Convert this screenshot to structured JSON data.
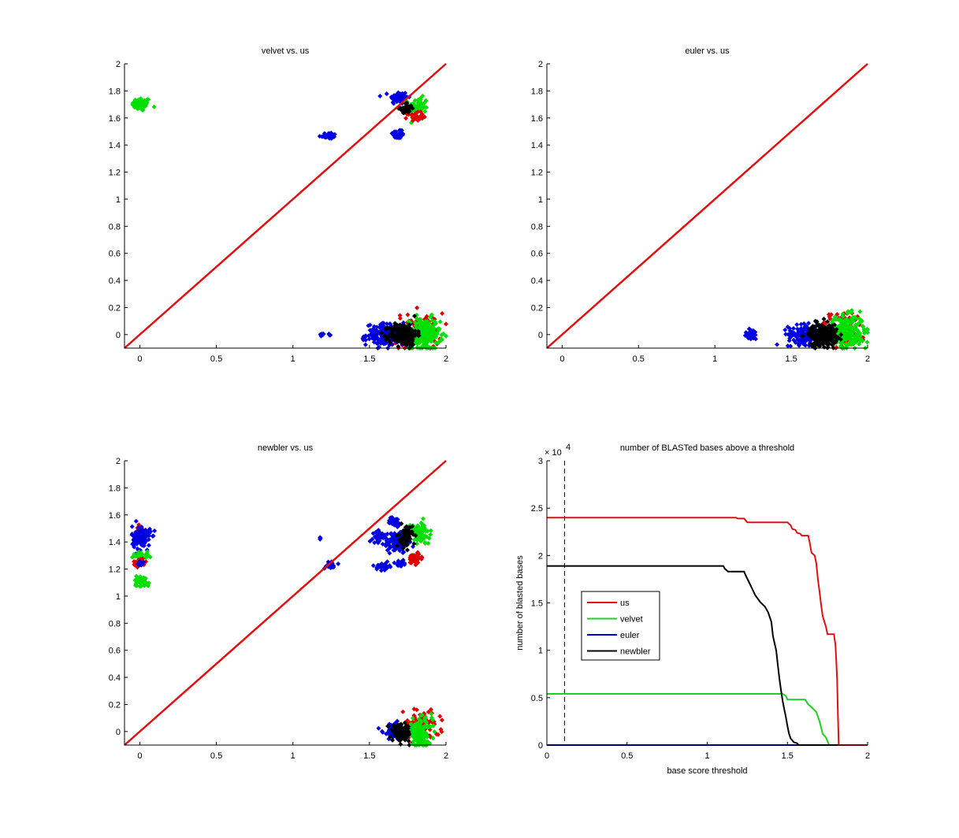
{
  "chart_data": [
    {
      "type": "scatter",
      "title": "velvet vs. us",
      "xlim": [
        -0.1,
        2
      ],
      "ylim": [
        -0.1,
        2
      ],
      "xticks": [
        "0",
        "0.5",
        "1",
        "1.5",
        "2"
      ],
      "xtick_values": [
        0,
        0.5,
        1,
        1.5,
        2
      ],
      "yticks": [
        "0",
        "0.2",
        "0.4",
        "0.6",
        "0.8",
        "1",
        "1.2",
        "1.4",
        "1.6",
        "1.8",
        "2"
      ],
      "ytick_values": [
        0,
        0.2,
        0.4,
        0.6,
        0.8,
        1,
        1.2,
        1.4,
        1.6,
        1.8,
        2
      ],
      "diagonal": {
        "from": [
          -0.1,
          -0.1
        ],
        "to": [
          2,
          2
        ],
        "color": "#e01010"
      },
      "clusters": [
        {
          "color": "#00e000",
          "cx": 0.01,
          "cy": 1.7,
          "sx": 0.03,
          "sy": 0.025,
          "n": 60
        },
        {
          "color": "#0000e0",
          "cx": 1.23,
          "cy": 1.47,
          "sx": 0.03,
          "sy": 0.012,
          "n": 25
        },
        {
          "color": "#0000e0",
          "cx": 1.69,
          "cy": 1.75,
          "sx": 0.03,
          "sy": 0.025,
          "n": 60
        },
        {
          "color": "#0000e0",
          "cx": 1.69,
          "cy": 1.48,
          "sx": 0.02,
          "sy": 0.02,
          "n": 25
        },
        {
          "color": "#00e000",
          "cx": 1.82,
          "cy": 1.69,
          "sx": 0.03,
          "sy": 0.03,
          "n": 60
        },
        {
          "color": "#e00000",
          "cx": 1.8,
          "cy": 1.61,
          "sx": 0.025,
          "sy": 0.015,
          "n": 30
        },
        {
          "color": "#000000",
          "cx": 1.74,
          "cy": 1.67,
          "sx": 0.02,
          "sy": 0.02,
          "n": 45
        },
        {
          "color": "#0000e0",
          "cx": 1.19,
          "cy": 0.0,
          "sx": 0.008,
          "sy": 0.005,
          "n": 6
        },
        {
          "color": "#0000e0",
          "cx": 1.24,
          "cy": 0.0,
          "sx": 0.006,
          "sy": 0.003,
          "n": 4
        },
        {
          "color": "#e00000",
          "cx": 1.82,
          "cy": 0.02,
          "sx": 0.08,
          "sy": 0.07,
          "n": 90
        },
        {
          "color": "#0000e0",
          "cx": 1.62,
          "cy": 0.0,
          "sx": 0.07,
          "sy": 0.04,
          "n": 200
        },
        {
          "color": "#00e000",
          "cx": 1.86,
          "cy": 0.0,
          "sx": 0.05,
          "sy": 0.06,
          "n": 200
        },
        {
          "color": "#000000",
          "cx": 1.72,
          "cy": 0.0,
          "sx": 0.045,
          "sy": 0.04,
          "n": 220
        }
      ]
    },
    {
      "type": "scatter",
      "title": "euler vs. us",
      "xlim": [
        -0.1,
        2
      ],
      "ylim": [
        -0.1,
        2
      ],
      "xticks": [
        "0",
        "0.5",
        "1",
        "1.5",
        "2"
      ],
      "xtick_values": [
        0,
        0.5,
        1,
        1.5,
        2
      ],
      "yticks": [
        "0",
        "0.2",
        "0.4",
        "0.6",
        "0.8",
        "1",
        "1.2",
        "1.4",
        "1.6",
        "1.8",
        "2"
      ],
      "ytick_values": [
        0,
        0.2,
        0.4,
        0.6,
        0.8,
        1,
        1.2,
        1.4,
        1.6,
        1.8,
        2
      ],
      "diagonal": {
        "from": [
          -0.1,
          -0.1
        ],
        "to": [
          2,
          2
        ],
        "color": "#e01010"
      },
      "clusters": [
        {
          "color": "#0000e0",
          "cx": 1.24,
          "cy": 0.0,
          "sx": 0.025,
          "sy": 0.02,
          "n": 40
        },
        {
          "color": "#e00000",
          "cx": 1.84,
          "cy": 0.04,
          "sx": 0.08,
          "sy": 0.07,
          "n": 100
        },
        {
          "color": "#0000e0",
          "cx": 1.6,
          "cy": 0.0,
          "sx": 0.06,
          "sy": 0.035,
          "n": 180
        },
        {
          "color": "#00e000",
          "cx": 1.86,
          "cy": 0.02,
          "sx": 0.06,
          "sy": 0.06,
          "n": 240
        },
        {
          "color": "#000000",
          "cx": 1.71,
          "cy": 0.0,
          "sx": 0.045,
          "sy": 0.04,
          "n": 240
        }
      ]
    },
    {
      "type": "scatter",
      "title": "newbler vs. us",
      "xlim": [
        -0.1,
        2
      ],
      "ylim": [
        -0.1,
        2
      ],
      "xticks": [
        "0",
        "0.5",
        "1",
        "1.5",
        "2"
      ],
      "xtick_values": [
        0,
        0.5,
        1,
        1.5,
        2
      ],
      "yticks": [
        "0",
        "0.2",
        "0.4",
        "0.6",
        "0.8",
        "1",
        "1.2",
        "1.4",
        "1.6",
        "1.8",
        "2"
      ],
      "ytick_values": [
        0,
        0.2,
        0.4,
        0.6,
        0.8,
        1,
        1.2,
        1.4,
        1.6,
        1.8,
        2
      ],
      "diagonal": {
        "from": [
          -0.1,
          -0.1
        ],
        "to": [
          2,
          2
        ],
        "color": "#e01010"
      },
      "clusters": [
        {
          "color": "#e00000",
          "cx": 0.0,
          "cy": 1.5,
          "sx": 0.015,
          "sy": 0.02,
          "n": 15
        },
        {
          "color": "#0000e0",
          "cx": 0.01,
          "cy": 1.43,
          "sx": 0.03,
          "sy": 0.045,
          "n": 120
        },
        {
          "color": "#00e000",
          "cx": 0.01,
          "cy": 1.3,
          "sx": 0.025,
          "sy": 0.015,
          "n": 30
        },
        {
          "color": "#e00000",
          "cx": 0.0,
          "cy": 1.25,
          "sx": 0.02,
          "sy": 0.015,
          "n": 30
        },
        {
          "color": "#0000e0",
          "cx": 0.0,
          "cy": 1.24,
          "sx": 0.01,
          "sy": 0.01,
          "n": 10
        },
        {
          "color": "#00e000",
          "cx": 0.01,
          "cy": 1.11,
          "sx": 0.025,
          "sy": 0.02,
          "n": 45
        },
        {
          "color": "#0000e0",
          "cx": 1.18,
          "cy": 1.43,
          "sx": 0.004,
          "sy": 0.004,
          "n": 4
        },
        {
          "color": "#0000e0",
          "cx": 1.24,
          "cy": 1.23,
          "sx": 0.02,
          "sy": 0.015,
          "n": 25
        },
        {
          "color": "#0000e0",
          "cx": 1.57,
          "cy": 1.44,
          "sx": 0.025,
          "sy": 0.02,
          "n": 40
        },
        {
          "color": "#0000e0",
          "cx": 1.66,
          "cy": 1.55,
          "sx": 0.02,
          "sy": 0.015,
          "n": 35
        },
        {
          "color": "#0000e0",
          "cx": 1.68,
          "cy": 1.4,
          "sx": 0.04,
          "sy": 0.04,
          "n": 110
        },
        {
          "color": "#0000e0",
          "cx": 1.59,
          "cy": 1.22,
          "sx": 0.02,
          "sy": 0.012,
          "n": 30
        },
        {
          "color": "#0000e0",
          "cx": 1.7,
          "cy": 1.24,
          "sx": 0.015,
          "sy": 0.012,
          "n": 20
        },
        {
          "color": "#00e000",
          "cx": 1.83,
          "cy": 1.46,
          "sx": 0.03,
          "sy": 0.04,
          "n": 90
        },
        {
          "color": "#000000",
          "cx": 1.74,
          "cy": 1.44,
          "sx": 0.02,
          "sy": 0.04,
          "n": 60
        },
        {
          "color": "#e00000",
          "cx": 1.8,
          "cy": 1.28,
          "sx": 0.025,
          "sy": 0.02,
          "n": 55
        },
        {
          "color": "#e00000",
          "cx": 1.84,
          "cy": 0.04,
          "sx": 0.06,
          "sy": 0.06,
          "n": 80
        },
        {
          "color": "#0000e0",
          "cx": 1.67,
          "cy": 0.0,
          "sx": 0.04,
          "sy": 0.03,
          "n": 100
        },
        {
          "color": "#00e000",
          "cx": 1.83,
          "cy": -0.01,
          "sx": 0.04,
          "sy": 0.05,
          "n": 140
        },
        {
          "color": "#000000",
          "cx": 1.71,
          "cy": -0.01,
          "sx": 0.03,
          "sy": 0.03,
          "n": 120
        }
      ]
    },
    {
      "type": "line",
      "title": "number of BLASTed bases above a threshold",
      "xlabel": "base score threshold",
      "ylabel": "number of blasted bases",
      "y_multiplier": "× 10",
      "y_multiplier_exp": "4",
      "xlim": [
        0,
        2
      ],
      "ylim": [
        0,
        3
      ],
      "xticks": [
        "0",
        "0.5",
        "1",
        "1.5",
        "2"
      ],
      "xtick_values": [
        0,
        0.5,
        1,
        1.5,
        2
      ],
      "yticks": [
        "0",
        "0.5",
        "1",
        "1.5",
        "2",
        "2.5",
        "3"
      ],
      "ytick_values": [
        0,
        0.5,
        1,
        1.5,
        2,
        2.5,
        3
      ],
      "vline": {
        "x": 0.11,
        "style": "dashed"
      },
      "legend": {
        "position": "middle-left"
      },
      "series": [
        {
          "name": "us",
          "color": "#e01010",
          "x": [
            0,
            1.18,
            1.19,
            1.23,
            1.24,
            1.25,
            1.5,
            1.52,
            1.53,
            1.55,
            1.56,
            1.58,
            1.59,
            1.63,
            1.64,
            1.65,
            1.67,
            1.68,
            1.69,
            1.7,
            1.71,
            1.72,
            1.74,
            1.75,
            1.79,
            1.8,
            1.81,
            1.815,
            1.82,
            2
          ],
          "y": [
            2.4,
            2.4,
            2.39,
            2.39,
            2.37,
            2.35,
            2.35,
            2.32,
            2.28,
            2.27,
            2.24,
            2.23,
            2.21,
            2.21,
            2.13,
            2.03,
            2.0,
            1.92,
            1.75,
            1.62,
            1.48,
            1.36,
            1.25,
            1.17,
            1.17,
            1.05,
            0.7,
            0.3,
            0,
            0
          ]
        },
        {
          "name": "velvet",
          "color": "#20d020",
          "x": [
            0,
            1.47,
            1.49,
            1.5,
            1.61,
            1.63,
            1.65,
            1.68,
            1.7,
            1.72,
            1.74,
            1.75,
            1.76,
            2
          ],
          "y": [
            0.54,
            0.54,
            0.52,
            0.48,
            0.48,
            0.43,
            0.4,
            0.35,
            0.25,
            0.12,
            0.08,
            0.04,
            0,
            0
          ]
        },
        {
          "name": "euler",
          "color": "#0000d0",
          "x": [
            0,
            1.56,
            2
          ],
          "y": [
            0,
            0,
            0
          ]
        },
        {
          "name": "newbler",
          "color": "#000000",
          "x": [
            0,
            1.1,
            1.11,
            1.13,
            1.23,
            1.24,
            1.26,
            1.28,
            1.3,
            1.33,
            1.36,
            1.38,
            1.4,
            1.41,
            1.43,
            1.44,
            1.45,
            1.46,
            1.47,
            1.48,
            1.49,
            1.5,
            1.51,
            1.52,
            1.53,
            1.54,
            1.56,
            1.57,
            2
          ],
          "y": [
            1.89,
            1.89,
            1.86,
            1.83,
            1.83,
            1.79,
            1.72,
            1.65,
            1.58,
            1.51,
            1.46,
            1.4,
            1.3,
            1.15,
            1.0,
            0.85,
            0.7,
            0.58,
            0.47,
            0.38,
            0.3,
            0.2,
            0.12,
            0.07,
            0.05,
            0.03,
            0.02,
            0,
            0
          ]
        }
      ]
    }
  ]
}
